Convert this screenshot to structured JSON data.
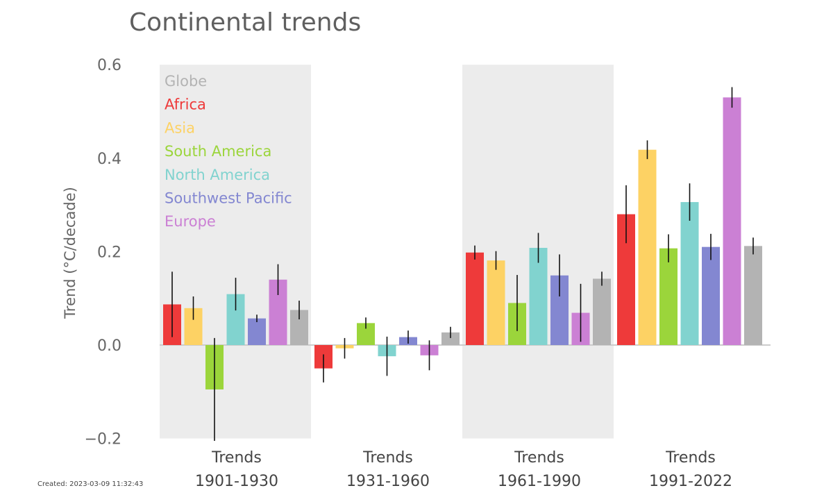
{
  "chart_data": {
    "type": "bar",
    "title": "Continental trends",
    "ylabel": "Trend (°C/decade)",
    "ylim": [
      -0.2,
      0.6
    ],
    "yticks": [
      "0.6",
      "0.4",
      "0.2",
      "0.0",
      "−0.2"
    ],
    "ytick_values": [
      0.6,
      0.4,
      0.2,
      0.0,
      -0.2
    ],
    "legend_placement": "top-left",
    "shaded_groups": [
      0,
      2
    ],
    "categories": [
      {
        "line1": "Trends",
        "line2": "1901-1930"
      },
      {
        "line1": "Trends",
        "line2": "1931-1960"
      },
      {
        "line1": "Trends",
        "line2": "1961-1990"
      },
      {
        "line1": "Trends",
        "line2": "1991-2022"
      }
    ],
    "series": [
      {
        "name": "Africa",
        "color": "#ee3a3a",
        "values": [
          0.087,
          -0.05,
          0.198,
          0.28
        ],
        "errors": [
          0.07,
          0.03,
          0.015,
          0.062
        ]
      },
      {
        "name": "Asia",
        "color": "#fdd264",
        "values": [
          0.079,
          -0.007,
          0.181,
          0.418
        ],
        "errors": [
          0.025,
          0.022,
          0.02,
          0.02
        ]
      },
      {
        "name": "South America",
        "color": "#9bd53b",
        "values": [
          -0.095,
          0.047,
          0.09,
          0.207
        ],
        "errors": [
          0.11,
          0.012,
          0.06,
          0.03
        ]
      },
      {
        "name": "North America",
        "color": "#81d3cf",
        "values": [
          0.109,
          -0.024,
          0.208,
          0.306
        ],
        "errors": [
          0.035,
          0.042,
          0.032,
          0.04
        ]
      },
      {
        "name": "Southwest Pacific",
        "color": "#8387d1",
        "values": [
          0.057,
          0.017,
          0.149,
          0.21
        ],
        "errors": [
          0.008,
          0.014,
          0.045,
          0.028
        ]
      },
      {
        "name": "Europe",
        "color": "#cb80d4",
        "values": [
          0.14,
          -0.022,
          0.069,
          0.53
        ],
        "errors": [
          0.033,
          0.032,
          0.062,
          0.022
        ]
      },
      {
        "name": "Globe",
        "color": "#b3b3b3",
        "values": [
          0.075,
          0.027,
          0.142,
          0.212
        ],
        "errors": [
          0.02,
          0.012,
          0.015,
          0.018
        ]
      }
    ],
    "legend_order": [
      "Globe",
      "Africa",
      "Asia",
      "South America",
      "North America",
      "Southwest Pacific",
      "Europe"
    ]
  },
  "footer": {
    "created": "Created: 2023-03-09 11:32:43"
  }
}
